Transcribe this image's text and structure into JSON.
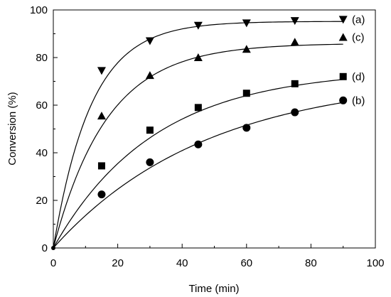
{
  "chart_data": {
    "type": "scatter",
    "title": "",
    "xlabel": "Time (min)",
    "ylabel": "Conversion (%)",
    "xlim": [
      0,
      100
    ],
    "ylim": [
      0,
      100
    ],
    "xticks": [
      0,
      20,
      40,
      60,
      80,
      100
    ],
    "yticks": [
      0,
      20,
      40,
      60,
      80,
      100
    ],
    "grid": false,
    "series": [
      {
        "name": "(a)",
        "marker": "triangle-down",
        "x": [
          0,
          15,
          30,
          45,
          60,
          75,
          90
        ],
        "y": [
          0,
          74.5,
          87,
          93.5,
          94.5,
          95.5,
          96
        ],
        "fit_plateau": 95.2,
        "fit_rate": 0.085
      },
      {
        "name": "(c)",
        "marker": "triangle-up",
        "x": [
          0,
          15,
          30,
          45,
          60,
          75,
          90
        ],
        "y": [
          0,
          55.5,
          72.5,
          80,
          83.5,
          86.5,
          88.5
        ],
        "fit_plateau": 86.0,
        "fit_rate": 0.06
      },
      {
        "name": "(d)",
        "marker": "square",
        "x": [
          0,
          15,
          30,
          45,
          60,
          75,
          90
        ],
        "y": [
          0,
          34.5,
          49.5,
          59,
          65,
          69,
          72
        ],
        "fit_plateau": 75.0,
        "fit_rate": 0.032
      },
      {
        "name": "(b)",
        "marker": "circle",
        "x": [
          0,
          15,
          30,
          45,
          60,
          75,
          90
        ],
        "y": [
          0,
          22.5,
          36,
          43.5,
          50.5,
          57,
          62
        ],
        "fit_plateau": 72.0,
        "fit_rate": 0.021
      }
    ]
  }
}
